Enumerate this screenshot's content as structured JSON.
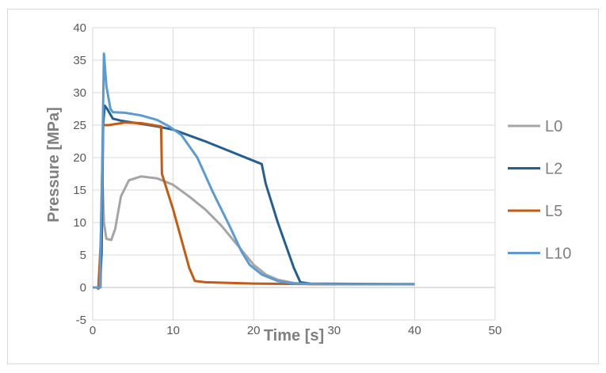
{
  "chart_data": {
    "type": "line",
    "title": "",
    "xlabel": "Time [s]",
    "ylabel": "Pressure [MPa]",
    "xlim": [
      0,
      50
    ],
    "ylim": [
      -5,
      40
    ],
    "xticks": [
      0,
      10,
      20,
      30,
      40,
      50
    ],
    "yticks": [
      -5,
      0,
      5,
      10,
      15,
      20,
      25,
      30,
      35,
      40
    ],
    "grid": true,
    "legend_position": "right",
    "series": [
      {
        "name": "L0",
        "color": "#a5a5a5",
        "x": [
          0,
          1.0,
          1.2,
          1.4,
          1.7,
          2.3,
          2.8,
          3.5,
          4.5,
          6,
          8,
          10,
          12,
          14,
          16,
          18,
          20,
          21.5,
          23,
          25,
          27,
          40
        ],
        "y": [
          0,
          0,
          17,
          10,
          7.5,
          7.3,
          9,
          14,
          16.5,
          17.1,
          16.8,
          15.8,
          14,
          12,
          9.5,
          6.5,
          3.5,
          2,
          1.2,
          0.7,
          0.5,
          0.5
        ]
      },
      {
        "name": "L2",
        "color": "#255e91",
        "x": [
          0,
          0.8,
          1.1,
          1.3,
          1.5,
          1.8,
          2.5,
          3.5,
          8,
          10,
          14,
          18,
          21,
          21.5,
          23,
          25,
          25.8,
          27,
          40
        ],
        "y": [
          0,
          0,
          5,
          25,
          28,
          27.5,
          26,
          25.7,
          24.8,
          24.3,
          22.5,
          20.5,
          19,
          16,
          10,
          3,
          0.8,
          0.6,
          0.5
        ]
      },
      {
        "name": "L5",
        "color": "#c55a11",
        "x": [
          0,
          0.5,
          0.7,
          1.0,
          1.3,
          2,
          4,
          6,
          8.5,
          8.6,
          10,
          12,
          12.7,
          14,
          20,
          30,
          40
        ],
        "y": [
          0,
          0,
          -0.2,
          7,
          25,
          25,
          25.4,
          25.3,
          24.8,
          17.5,
          12,
          3,
          1,
          0.8,
          0.6,
          0.5,
          0.5
        ]
      },
      {
        "name": "L10",
        "color": "#5b9bd5",
        "x": [
          0,
          0.9,
          1.2,
          1.4,
          1.7,
          2.2,
          2.5,
          4,
          6,
          8,
          9.5,
          11,
          13,
          15,
          17,
          18.5,
          19.5,
          21,
          23,
          25,
          30,
          40
        ],
        "y": [
          0,
          0,
          20,
          36,
          31,
          27.5,
          27,
          26.9,
          26.5,
          25.8,
          24.8,
          23.5,
          20,
          14.5,
          9.5,
          5.5,
          3.5,
          2,
          1,
          0.6,
          0.5,
          0.5
        ]
      }
    ]
  }
}
